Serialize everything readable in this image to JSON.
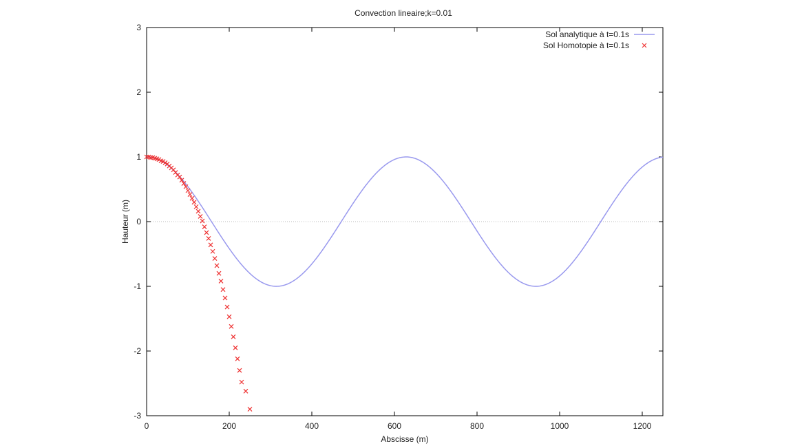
{
  "chart_data": {
    "type": "line",
    "title": "Convection lineaire;k=0.01",
    "xlabel": "Abscisse (m)",
    "ylabel": "Hauteur (m)",
    "xlim": [
      0,
      1250
    ],
    "ylim": [
      -3,
      3
    ],
    "xticks": [
      0,
      200,
      400,
      600,
      800,
      1000,
      1200
    ],
    "yticks": [
      -3,
      -2,
      -1,
      0,
      1,
      2,
      3
    ],
    "grid": false,
    "zero_line": true,
    "legend_position": "top-right",
    "series": [
      {
        "name": "Sol analytique à t=0.1s",
        "style": "line",
        "color": "#9999ee",
        "function": "cos(0.01 * x)",
        "x_range": [
          0,
          1250
        ]
      },
      {
        "name": "Sol Homotopie à t=0.1s",
        "style": "marker-x",
        "color": "#ee3333",
        "points": [
          [
            0,
            1.0
          ],
          [
            5,
            1.0
          ],
          [
            10,
            0.99
          ],
          [
            15,
            0.99
          ],
          [
            20,
            0.98
          ],
          [
            25,
            0.97
          ],
          [
            30,
            0.96
          ],
          [
            35,
            0.94
          ],
          [
            40,
            0.93
          ],
          [
            45,
            0.91
          ],
          [
            50,
            0.89
          ],
          [
            55,
            0.86
          ],
          [
            60,
            0.83
          ],
          [
            65,
            0.8
          ],
          [
            70,
            0.76
          ],
          [
            75,
            0.72
          ],
          [
            80,
            0.69
          ],
          [
            85,
            0.64
          ],
          [
            90,
            0.59
          ],
          [
            95,
            0.54
          ],
          [
            100,
            0.48
          ],
          [
            105,
            0.42
          ],
          [
            110,
            0.36
          ],
          [
            115,
            0.3
          ],
          [
            120,
            0.23
          ],
          [
            125,
            0.16
          ],
          [
            130,
            0.08
          ],
          [
            135,
            0.01
          ],
          [
            140,
            -0.08
          ],
          [
            145,
            -0.17
          ],
          [
            150,
            -0.26
          ],
          [
            155,
            -0.36
          ],
          [
            160,
            -0.46
          ],
          [
            165,
            -0.57
          ],
          [
            170,
            -0.68
          ],
          [
            175,
            -0.8
          ],
          [
            180,
            -0.92
          ],
          [
            185,
            -1.05
          ],
          [
            190,
            -1.18
          ],
          [
            195,
            -1.32
          ],
          [
            200,
            -1.47
          ],
          [
            205,
            -1.62
          ],
          [
            210,
            -1.78
          ],
          [
            215,
            -1.95
          ],
          [
            220,
            -2.12
          ],
          [
            225,
            -2.3
          ],
          [
            230,
            -2.48
          ],
          [
            240,
            -2.62
          ],
          [
            250,
            -2.9
          ]
        ]
      }
    ]
  }
}
